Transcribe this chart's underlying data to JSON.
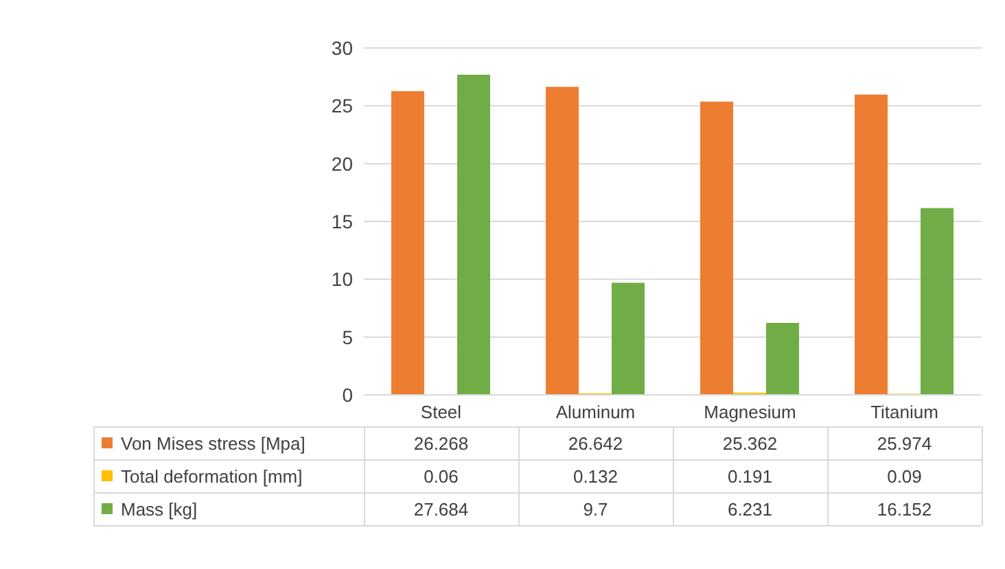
{
  "chart_data": {
    "type": "bar",
    "categories": [
      "Steel",
      "Aluminum",
      "Magnesium",
      "Titanium"
    ],
    "series": [
      {
        "name": "Von Mises stress [Mpa]",
        "color": "#ed7d31",
        "values": [
          26.268,
          26.642,
          25.362,
          25.974
        ]
      },
      {
        "name": "Total deformation [mm]",
        "color": "#ffc000",
        "values": [
          0.06,
          0.132,
          0.191,
          0.09
        ]
      },
      {
        "name": "Mass [kg]",
        "color": "#70ad47",
        "values": [
          27.684,
          9.7,
          6.231,
          16.152
        ]
      }
    ],
    "ylim": [
      0,
      30
    ],
    "yticks": [
      0,
      5,
      10,
      15,
      20,
      25,
      30
    ],
    "grid": "y",
    "data_labels": true,
    "legend": "bottom"
  }
}
